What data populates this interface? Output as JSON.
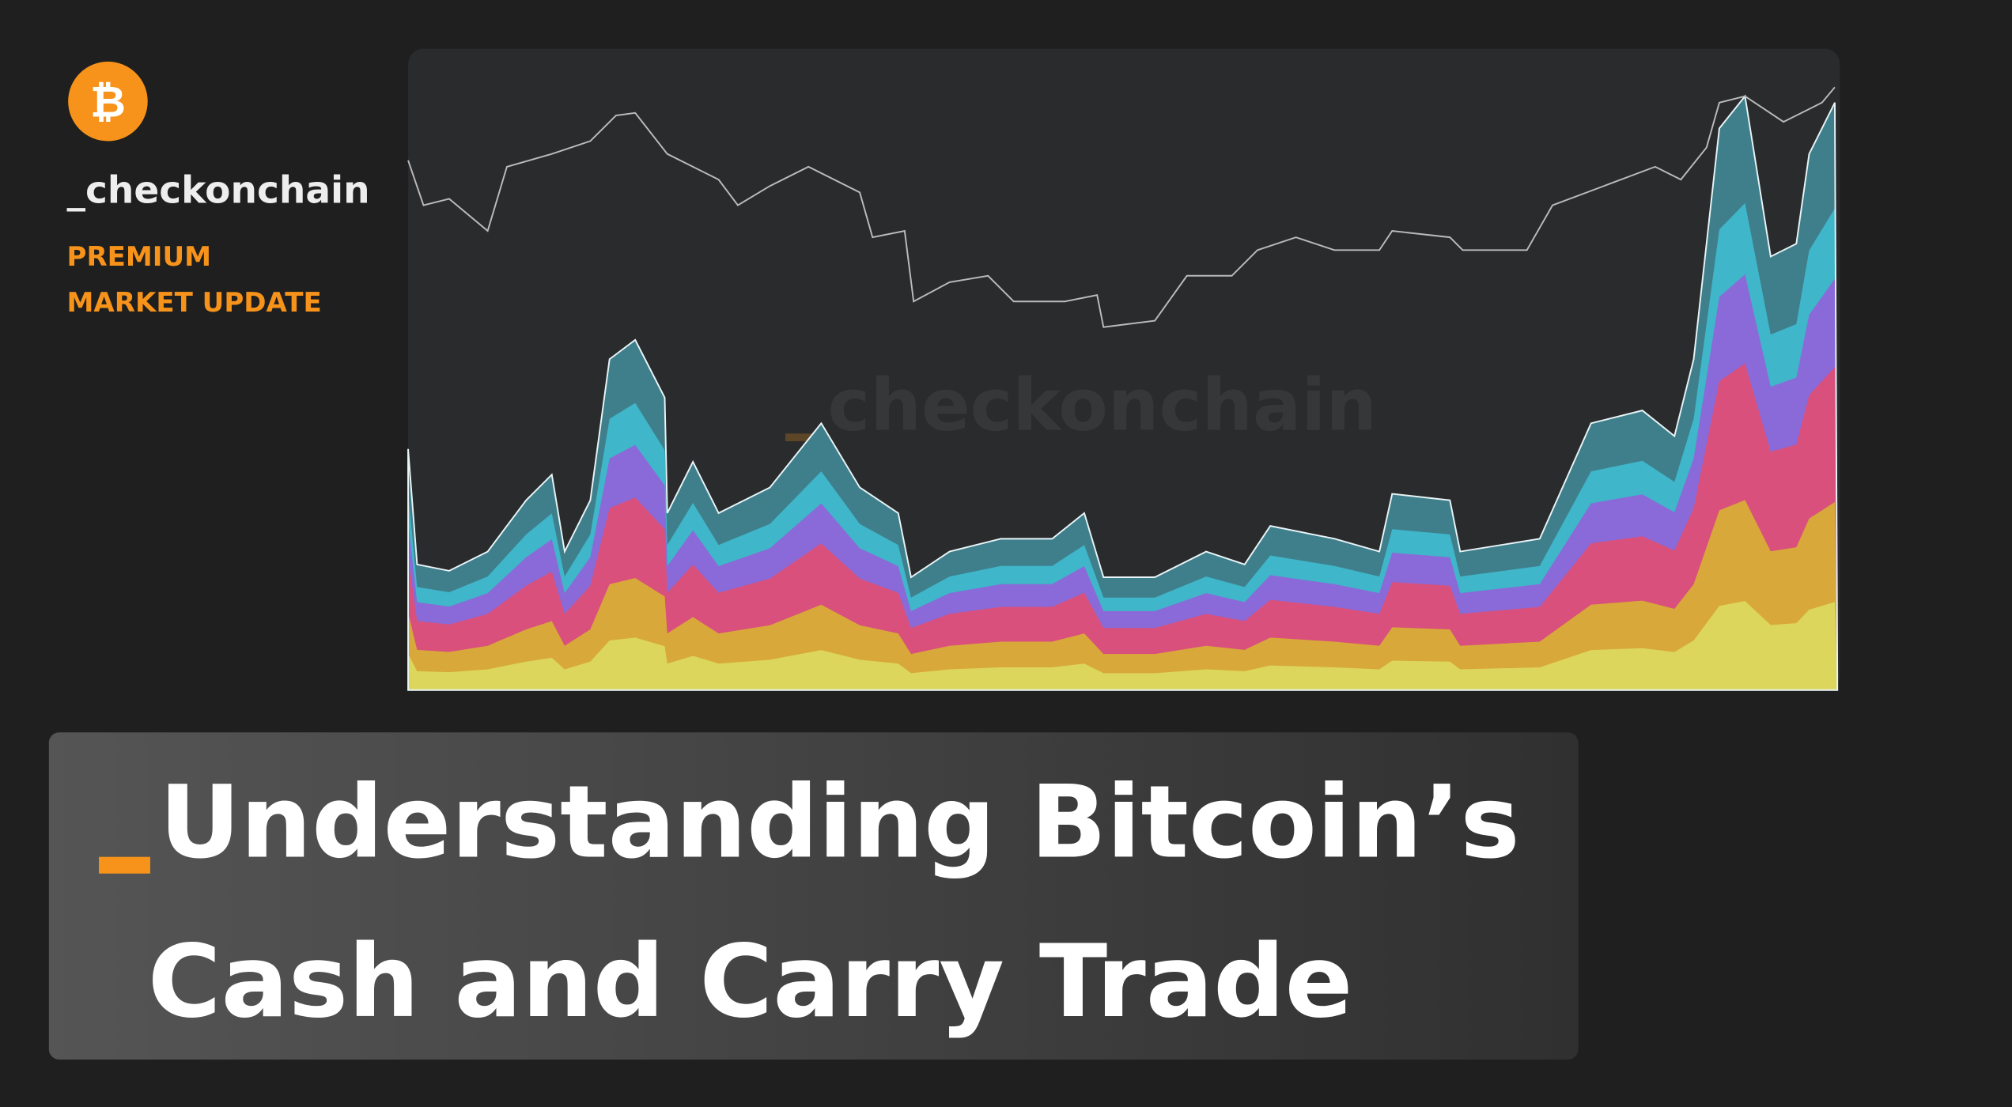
{
  "brand": {
    "logo": "₿",
    "name": "_checkonchain",
    "tag_lines": [
      "PREMIUM",
      "MARKET UPDATE"
    ]
  },
  "watermark": "checkonchain",
  "title": {
    "lines": [
      "Understanding Bitcoin’s",
      "Cash and Carry Trade"
    ]
  }
}
